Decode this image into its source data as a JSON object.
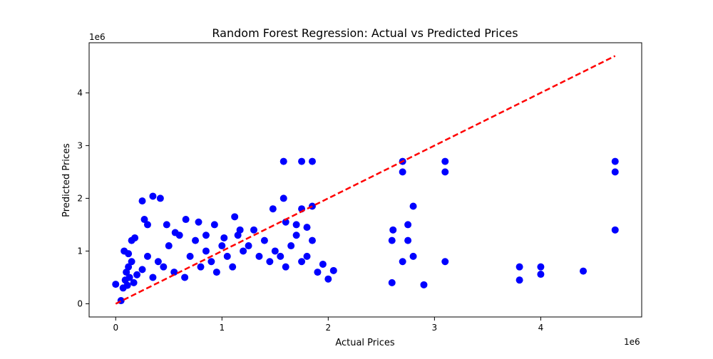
{
  "chart_data": {
    "type": "scatter",
    "title": "Random Forest Regression: Actual vs Predicted Prices",
    "xlabel": "Actual Prices",
    "ylabel": "Predicted Prices",
    "x_offset_label": "1e6",
    "y_offset_label": "1e6",
    "xlim": [
      -250000,
      4950000
    ],
    "ylim": [
      -250000,
      4950000
    ],
    "x_ticks": [
      {
        "value": 0,
        "label": "0"
      },
      {
        "value": 1000000,
        "label": "1"
      },
      {
        "value": 2000000,
        "label": "2"
      },
      {
        "value": 3000000,
        "label": "3"
      },
      {
        "value": 4000000,
        "label": "4"
      }
    ],
    "y_ticks": [
      {
        "value": 0,
        "label": "0"
      },
      {
        "value": 1000000,
        "label": "1"
      },
      {
        "value": 2000000,
        "label": "2"
      },
      {
        "value": 3000000,
        "label": "3"
      },
      {
        "value": 4000000,
        "label": "4"
      }
    ],
    "grid": false,
    "point_color": "#0000ff",
    "reference_line": {
      "x": [
        0,
        4700000
      ],
      "y": [
        0,
        4700000
      ],
      "color": "#ff0000",
      "style": "dashed"
    },
    "points": {
      "x": [
        0,
        50000,
        70000,
        90000,
        100000,
        110000,
        120000,
        130000,
        150000,
        170000,
        200000,
        250000,
        300000,
        350000,
        400000,
        450000,
        500000,
        550000,
        600000,
        650000,
        700000,
        750000,
        800000,
        850000,
        900000,
        950000,
        1000000,
        1050000,
        1100000,
        1150000,
        1200000,
        1250000,
        1300000,
        1350000,
        1400000,
        1450000,
        1500000,
        1550000,
        1600000,
        1650000,
        1700000,
        1750000,
        1800000,
        1850000,
        1900000,
        1950000,
        2000000,
        2050000,
        2600000,
        2700000,
        2750000,
        2800000,
        2900000,
        3100000,
        3800000,
        4000000,
        4400000,
        4700000,
        250000,
        350000,
        420000,
        180000,
        270000,
        480000,
        660000,
        780000,
        930000,
        1120000,
        1580000,
        1750000,
        1850000,
        1580000,
        1750000,
        1850000,
        2700000,
        3100000,
        4700000,
        2800000,
        1480000,
        1600000,
        1170000,
        1020000,
        850000,
        560000,
        300000,
        150000,
        80000,
        120000,
        2600000,
        2610000,
        2700000,
        2750000,
        3100000,
        4700000,
        3800000,
        4000000,
        1700000,
        1800000
      ],
      "y": [
        370000,
        60000,
        300000,
        450000,
        600000,
        350000,
        700000,
        500000,
        800000,
        400000,
        550000,
        650000,
        900000,
        500000,
        800000,
        700000,
        1100000,
        600000,
        1300000,
        500000,
        900000,
        1200000,
        700000,
        1000000,
        800000,
        600000,
        1100000,
        900000,
        700000,
        1300000,
        1000000,
        1100000,
        1400000,
        900000,
        1200000,
        800000,
        1000000,
        900000,
        700000,
        1100000,
        1300000,
        800000,
        900000,
        1200000,
        600000,
        750000,
        470000,
        630000,
        1200000,
        800000,
        1200000,
        900000,
        360000,
        800000,
        450000,
        560000,
        620000,
        1400000,
        1950000,
        2040000,
        2000000,
        1250000,
        1600000,
        1500000,
        1600000,
        1550000,
        1500000,
        1650000,
        2700000,
        2700000,
        2700000,
        2000000,
        1800000,
        1850000,
        2700000,
        2700000,
        2700000,
        1850000,
        1800000,
        1550000,
        1400000,
        1250000,
        1300000,
        1350000,
        1500000,
        1200000,
        1000000,
        950000,
        400000,
        1400000,
        2500000,
        1500000,
        2500000,
        2500000,
        700000,
        700000,
        1500000,
        1450000
      ]
    }
  }
}
